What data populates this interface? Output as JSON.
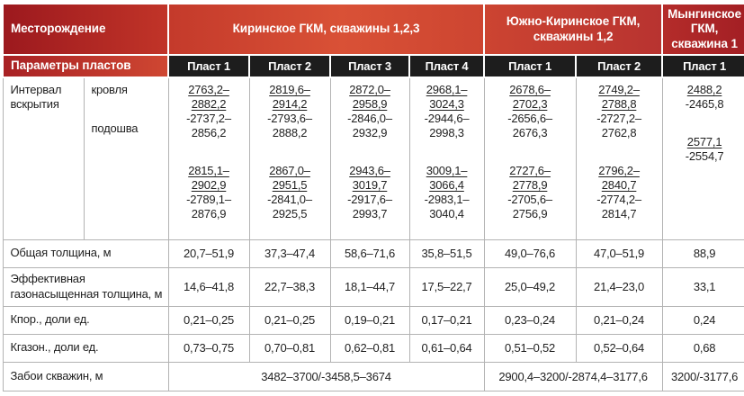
{
  "palette": {
    "header_text": "#ffffff",
    "gradient_left": "#9c191e",
    "gradient_mid": "#d95136",
    "gradient_right": "#a31f24",
    "plast_header_bg": "#1d1d1d",
    "body_text": "#1f1f1f",
    "grid_line": "#b3b3b3"
  },
  "table": {
    "field_label": "Месторождение",
    "params_label": "Параметры пластов",
    "groups": [
      {
        "title": "Киринское ГКМ, скважины 1,2,3",
        "plasts": [
          "Пласт 1",
          "Пласт 2",
          "Пласт 3",
          "Пласт 4"
        ]
      },
      {
        "title": "Южно-Киринское ГКМ, скважины 1,2",
        "plasts": [
          "Пласт 1",
          "Пласт 2"
        ]
      },
      {
        "title": "Мынгинское ГКМ, скважина 1",
        "plasts": [
          "Пласт 1"
        ]
      }
    ],
    "interval_row": {
      "label": "Интервал вскрытия",
      "sublabel_top": "кровля",
      "sublabel_bottom": "подошва",
      "cells": [
        {
          "blocks": [
            {
              "underlined": [
                "2763,2–",
                "2882,2"
              ],
              "plain": [
                "-2737,2–",
                "2856,2"
              ]
            },
            {
              "underlined": [
                "2815,1–",
                "2902,9"
              ],
              "plain": [
                "-2789,1–",
                "2876,9"
              ]
            }
          ]
        },
        {
          "blocks": [
            {
              "underlined": [
                "2819,6–",
                "2914,2"
              ],
              "plain": [
                "-2793,6–",
                "2888,2"
              ]
            },
            {
              "underlined": [
                "2867,0–",
                "2951,5"
              ],
              "plain": [
                "-2841,0–",
                "2925,5"
              ]
            }
          ]
        },
        {
          "blocks": [
            {
              "underlined": [
                "2872,0–",
                "2958,9"
              ],
              "plain": [
                "-2846,0–",
                "2932,9"
              ]
            },
            {
              "underlined": [
                "2943,6–",
                "3019,7"
              ],
              "plain": [
                "-2917,6–",
                "2993,7"
              ]
            }
          ]
        },
        {
          "blocks": [
            {
              "underlined": [
                "2968,1–",
                "3024,3"
              ],
              "plain": [
                "-2944,6–",
                "2998,3"
              ]
            },
            {
              "underlined": [
                "3009,1–",
                "3066,4"
              ],
              "plain": [
                "-2983,1–",
                "3040,4"
              ]
            }
          ]
        },
        {
          "blocks": [
            {
              "underlined": [
                "2678,6–",
                "2702,3"
              ],
              "plain": [
                "-2656,6–",
                "2676,3"
              ]
            },
            {
              "underlined": [
                "2727,6–",
                "2778,9"
              ],
              "plain": [
                "-2705,6–",
                "2756,9"
              ]
            }
          ]
        },
        {
          "blocks": [
            {
              "underlined": [
                "2749,2–",
                "2788,8"
              ],
              "plain": [
                "-2727,2–",
                "2762,8"
              ]
            },
            {
              "underlined": [
                "2796,2–",
                "2840,7"
              ],
              "plain": [
                "-2774,2–",
                "2814,7"
              ]
            }
          ]
        },
        {
          "blocks": [
            {
              "underlined": [
                "2488,2"
              ],
              "plain": [
                "-2465,8"
              ]
            },
            {
              "underlined": [
                "2577,1"
              ],
              "plain": [
                "-2554,7"
              ]
            }
          ]
        }
      ]
    },
    "rows": [
      {
        "label": "Общая толщина, м",
        "values": [
          "20,7–51,9",
          "37,3–47,4",
          "58,6–71,6",
          "35,8–51,5",
          "49,0–76,6",
          "47,0–51,9",
          "88,9"
        ]
      },
      {
        "label": "Эффективная газонасыщенная толщина, м",
        "values": [
          "14,6–41,8",
          "22,7–38,3",
          "18,1–44,7",
          "17,5–22,7",
          "25,0–49,2",
          "21,4–23,0",
          "33,1"
        ]
      },
      {
        "label": "Кпор., доли ед.",
        "values": [
          "0,21–0,25",
          "0,21–0,25",
          "0,19–0,21",
          "0,17–0,21",
          "0,23–0,24",
          "0,21–0,24",
          "0,24"
        ]
      },
      {
        "label": "Кгазон., доли ед.",
        "values": [
          "0,73–0,75",
          "0,70–0,81",
          "0,62–0,81",
          "0,61–0,64",
          "0,51–0,52",
          "0,52–0,64",
          "0,68"
        ]
      }
    ],
    "footer": {
      "label": "Забои скважин, м",
      "values": [
        {
          "text": "3482–3700/-3458,5–3674",
          "span": 4
        },
        {
          "text": "2900,4–3200/-2874,4–3177,6",
          "span": 2
        },
        {
          "text": "3200/-3177,6",
          "span": 1
        }
      ]
    }
  }
}
